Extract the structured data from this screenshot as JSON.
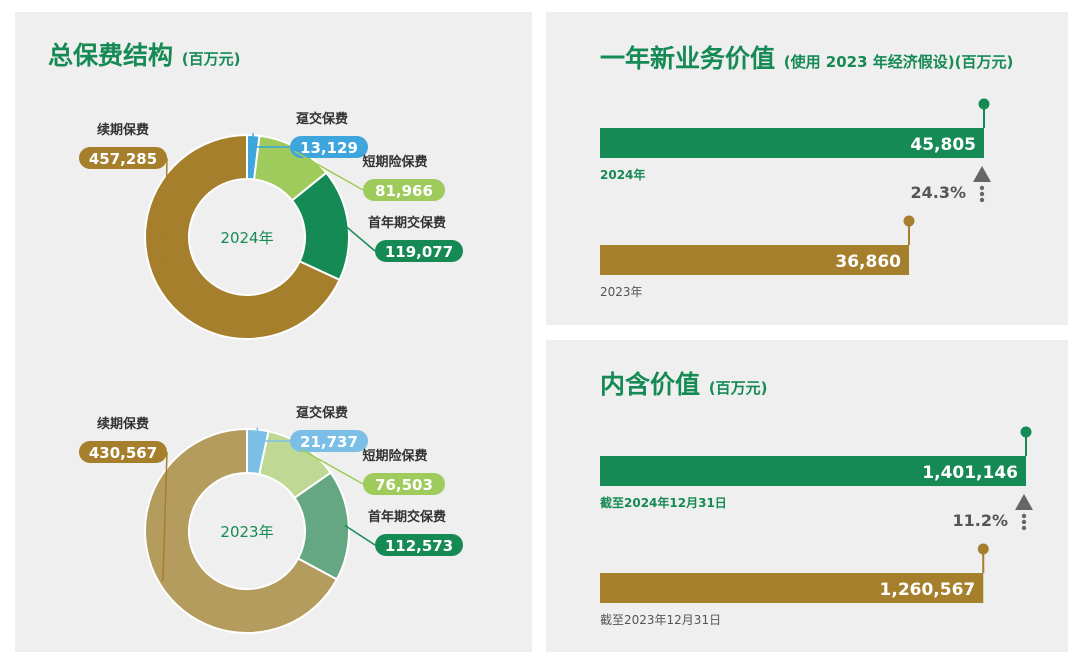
{
  "panels": {
    "premium": {
      "title": "总保费结构",
      "unit": "(百万元)"
    },
    "nbv": {
      "title": "一年新业务价值",
      "unit": "(使用 2023 年经济假设)(百万元)"
    },
    "ev": {
      "title": "内含价值",
      "unit": "(百万元)"
    }
  },
  "chart_data": [
    {
      "type": "pie",
      "center_label": "2024年",
      "slices": [
        {
          "name": "趸交保费",
          "value": 13129,
          "value_label": "13,129",
          "color": "#3ea6dd"
        },
        {
          "name": "短期险保费",
          "value": 81966,
          "value_label": "81,966",
          "color": "#9ecb5c"
        },
        {
          "name": "首年期交保费",
          "value": 119077,
          "value_label": "119,077",
          "color": "#168a55"
        },
        {
          "name": "续期保费",
          "value": 457285,
          "value_label": "457,285",
          "color": "#a57f2c"
        }
      ]
    },
    {
      "type": "pie",
      "center_label": "2023年",
      "slices": [
        {
          "name": "趸交保费",
          "value": 21737,
          "value_label": "21,737",
          "color": "#7bbfe6"
        },
        {
          "name": "短期险保费",
          "value": 76503,
          "value_label": "76,503",
          "color": "#bfd994",
          "label_color": "#9ecb5c"
        },
        {
          "name": "首年期交保费",
          "value": 112573,
          "value_label": "112,573",
          "color": "#66a783",
          "label_color": "#168a55"
        },
        {
          "name": "续期保费",
          "value": 430567,
          "value_label": "430,567",
          "color": "#b49c5e",
          "label_color": "#a57f2c"
        }
      ]
    },
    {
      "type": "bar",
      "orientation": "horizontal",
      "categories": [
        "2024年",
        "2023年"
      ],
      "values": [
        45805,
        36860
      ],
      "value_labels": [
        "45,805",
        "36,860"
      ],
      "colors": [
        "#168a55",
        "#a57f2c"
      ],
      "growth_label": "24.3%"
    },
    {
      "type": "bar",
      "orientation": "horizontal",
      "categories": [
        "截至2024年12月31日",
        "截至2023年12月31日"
      ],
      "values": [
        1401146,
        1260567
      ],
      "value_labels": [
        "1,401,146",
        "1,260,567"
      ],
      "colors": [
        "#168a55",
        "#a57f2c"
      ],
      "growth_label": "11.2%"
    }
  ]
}
